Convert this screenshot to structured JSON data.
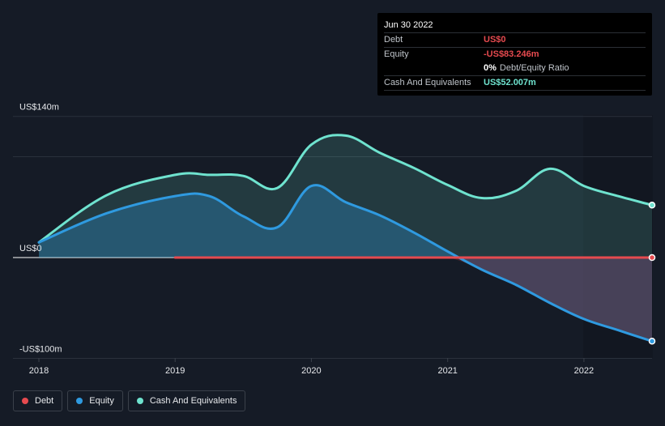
{
  "tooltip": {
    "date": "Jun 30 2022",
    "debt_label": "Debt",
    "debt_value": "US$0",
    "equity_label": "Equity",
    "equity_value": "-US$83.246m",
    "ratio_value": "0%",
    "ratio_label": "Debt/Equity Ratio",
    "cash_label": "Cash And Equivalents",
    "cash_value": "US$52.007m"
  },
  "colors": {
    "background": "#151b26",
    "debt": "#e64a4f",
    "equity": "#2f9ae0",
    "cash": "#6fe3cf",
    "tooltip_bg": "#000000"
  },
  "legend": [
    {
      "label": "Debt",
      "color": "#e64a4f"
    },
    {
      "label": "Equity",
      "color": "#2f9ae0"
    },
    {
      "label": "Cash And Equivalents",
      "color": "#6fe3cf"
    }
  ],
  "chart_data": {
    "type": "area",
    "y_ticks": [
      {
        "value": 140,
        "label": "US$140m"
      },
      {
        "value": 0,
        "label": "US$0"
      },
      {
        "value": -100,
        "label": "-US$100m"
      }
    ],
    "x_ticks": [
      {
        "value": 2018,
        "label": "2018"
      },
      {
        "value": 2019,
        "label": "2019"
      },
      {
        "value": 2020,
        "label": "2020"
      },
      {
        "value": 2021,
        "label": "2021"
      },
      {
        "value": 2022,
        "label": "2022"
      }
    ],
    "xlim": [
      2017.8,
      2022.5
    ],
    "ylim": [
      -100,
      140
    ],
    "series": [
      {
        "name": "Cash And Equivalents",
        "color": "#6fe3cf",
        "x": [
          2018.0,
          2018.5,
          2019.0,
          2019.25,
          2019.5,
          2019.75,
          2020.0,
          2020.25,
          2020.5,
          2020.75,
          2021.0,
          2021.25,
          2021.5,
          2021.75,
          2022.0,
          2022.25,
          2022.5
        ],
        "y": [
          15,
          62,
          82,
          82,
          81,
          69,
          112,
          121,
          104,
          89,
          72,
          59,
          66,
          88,
          71,
          61,
          52
        ]
      },
      {
        "name": "Equity",
        "color": "#2f9ae0",
        "x": [
          2018.0,
          2018.5,
          2019.0,
          2019.25,
          2019.5,
          2019.75,
          2020.0,
          2020.25,
          2020.5,
          2020.75,
          2021.0,
          2021.25,
          2021.5,
          2021.75,
          2022.0,
          2022.25,
          2022.5
        ],
        "y": [
          15,
          44,
          61,
          61,
          41,
          30,
          71,
          55,
          42,
          25,
          6,
          -12,
          -27,
          -45,
          -61,
          -72,
          -83
        ]
      },
      {
        "name": "Debt",
        "color": "#e64a4f",
        "x": [
          2019.0,
          2019.5,
          2020.0,
          2020.5,
          2021.0,
          2021.5,
          2022.0,
          2022.5
        ],
        "y": [
          0,
          0,
          0,
          0,
          0,
          0,
          0,
          0
        ]
      }
    ]
  }
}
